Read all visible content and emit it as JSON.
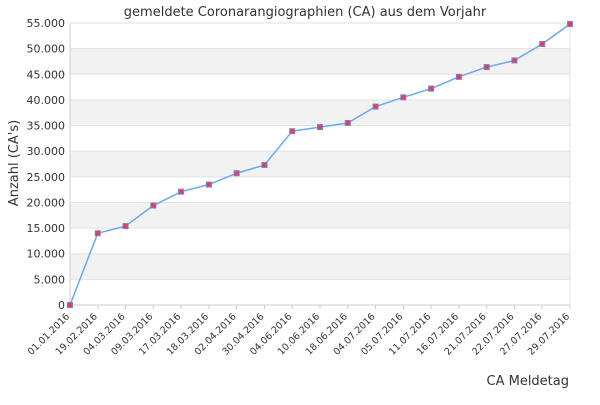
{
  "chart_data": {
    "type": "line",
    "title": "gemeldete Coronarangiographien (CA) aus dem Vorjahr",
    "xlabel": "CA Meldetag",
    "ylabel": "Anzahl (CA's)",
    "ylim": [
      0,
      55000
    ],
    "yticks": [
      "0",
      "5.000",
      "10.000",
      "15.000",
      "20.000",
      "25.000",
      "30.000",
      "35.000",
      "40.000",
      "45.000",
      "50.000",
      "55.000"
    ],
    "categories": [
      "01.01.2016",
      "19.02.2016",
      "04.03.2016",
      "09.03.2016",
      "17.03.2016",
      "18.03.2016",
      "02.04.2016",
      "30.04.2016",
      "04.06.2016",
      "10.06.2016",
      "18.06.2016",
      "04.07.2016",
      "05.07.2016",
      "11.07.2016",
      "16.07.2016",
      "21.07.2016",
      "22.07.2016",
      "27.07.2016",
      "29.07.2016"
    ],
    "values": [
      0,
      14000,
      15400,
      19400,
      22100,
      23500,
      25700,
      27300,
      33900,
      34700,
      35500,
      38700,
      40500,
      42200,
      44500,
      46400,
      47700,
      50900,
      54800
    ],
    "grid": true,
    "banded_background": true,
    "colors": {
      "line": "#6aa8f0",
      "marker_fill": "#e04060",
      "marker_stroke": "#8080c0",
      "band": "#f2f2f2",
      "axis": "#cccccc"
    }
  }
}
